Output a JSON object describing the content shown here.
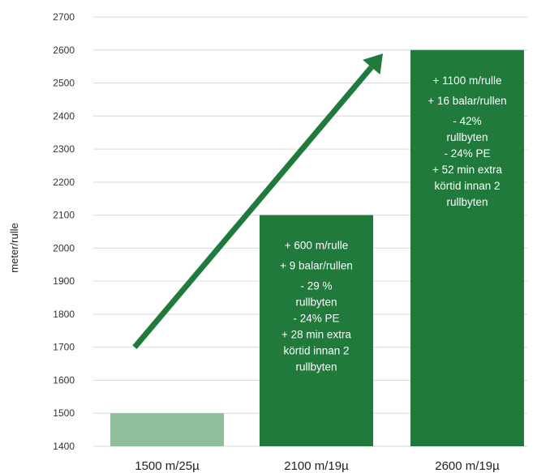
{
  "chart_data": {
    "type": "bar",
    "title": "",
    "xlabel": "",
    "ylabel": "meter/rulle",
    "ylim": [
      1400,
      2700
    ],
    "yticks": [
      1400,
      1500,
      1600,
      1700,
      1800,
      1900,
      2000,
      2100,
      2200,
      2300,
      2400,
      2500,
      2600,
      2700
    ],
    "grid": true,
    "categories": [
      "1500 m/25µ",
      "2100 m/19µ",
      "2600 m/19µ"
    ],
    "values": [
      1500,
      2100,
      2600
    ],
    "bar_colors": [
      "#8fbf9a",
      "#1f7a3c",
      "#1f7a3c"
    ],
    "annotations": [
      [],
      [
        "+ 600 m/rulle",
        "+ 9 balar/rullen",
        "- 29 %",
        "rullbyten",
        "- 24% PE",
        "+ 28 min extra",
        "körtid innan 2",
        "rullbyten"
      ],
      [
        "+ 1100 m/rulle",
        "+ 16 balar/rullen",
        "- 42%",
        "rullbyten",
        "- 24% PE",
        "+ 52 min extra",
        "körtid innan 2",
        "rullbyten"
      ]
    ],
    "trend_arrow": {
      "from_value": 1700,
      "to_value": 2550,
      "color": "#1f7a3c"
    }
  }
}
